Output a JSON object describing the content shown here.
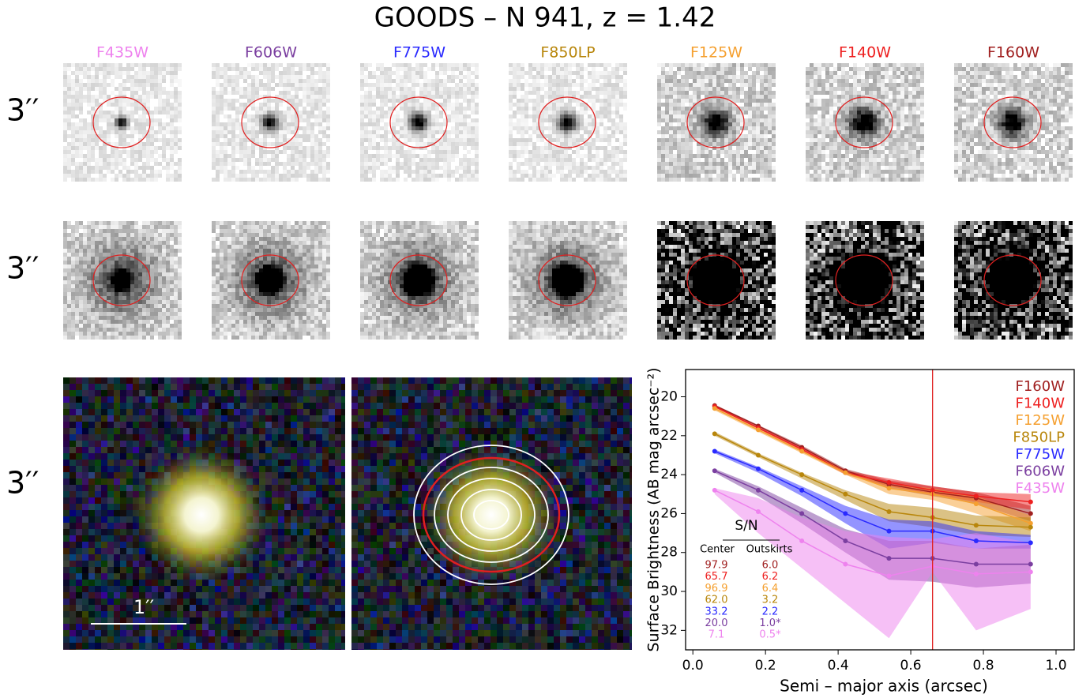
{
  "title": "GOODS – N 941, z = 1.42",
  "filters": [
    {
      "label": "F435W",
      "color": "#ee82ee"
    },
    {
      "label": "F606W",
      "color": "#7b3fa0"
    },
    {
      "label": "F775W",
      "color": "#2a2aff"
    },
    {
      "label": "F850LP",
      "color": "#b8860b"
    },
    {
      "label": "F125W",
      "color": "#f5a030"
    },
    {
      "label": "F140W",
      "color": "#ee2020"
    },
    {
      "label": "F160W",
      "color": "#a02020"
    }
  ],
  "row_labels": [
    "3′′",
    "3′′",
    "3′′"
  ],
  "scale_bar_label": "1′′",
  "chart_data": {
    "type": "line",
    "xlabel": "Semi – major axis (arcsec)",
    "ylabel": "Surface Brightness (AB mag arcsec⁻²)",
    "x": [
      0.06,
      0.18,
      0.3,
      0.42,
      0.54,
      0.66,
      0.78,
      0.93
    ],
    "xlim": [
      -0.02,
      1.05
    ],
    "ylim": [
      33,
      18.6
    ],
    "xticks": [
      {
        "value": 0,
        "label": "0.0"
      },
      0.2,
      0.4,
      0.6,
      0.8,
      {
        "value": 1,
        "label": "1.0"
      }
    ],
    "yticks": [
      20,
      22,
      24,
      26,
      28,
      30,
      32
    ],
    "vline_x": 0.66,
    "vline_color": "#e02020",
    "series": [
      {
        "name": "F160W",
        "color": "#a02020",
        "values": [
          20.45,
          21.5,
          22.6,
          23.8,
          24.5,
          24.9,
          25.2,
          26.0
        ],
        "lower": [
          20.4,
          21.45,
          22.5,
          23.7,
          24.3,
          24.6,
          24.9,
          25.6
        ],
        "upper": [
          20.5,
          21.6,
          22.7,
          23.9,
          24.7,
          25.1,
          25.5,
          26.4
        ]
      },
      {
        "name": "F140W",
        "color": "#ee2020",
        "values": [
          20.5,
          21.6,
          22.7,
          23.9,
          24.4,
          24.8,
          25.1,
          25.4
        ],
        "lower": [
          20.45,
          21.55,
          22.6,
          23.8,
          24.2,
          24.6,
          24.9,
          25.0
        ],
        "upper": [
          20.55,
          21.65,
          22.8,
          24.0,
          24.6,
          25.0,
          25.4,
          25.8
        ]
      },
      {
        "name": "F125W",
        "color": "#f5a030",
        "values": [
          20.6,
          21.7,
          22.8,
          23.9,
          24.7,
          25.0,
          25.5,
          26.5
        ],
        "lower": [
          20.5,
          21.6,
          22.7,
          23.8,
          24.5,
          24.7,
          25.1,
          26.1
        ],
        "upper": [
          20.7,
          21.8,
          22.9,
          24.0,
          25.0,
          25.3,
          26.0,
          26.9
        ]
      },
      {
        "name": "F850LP",
        "color": "#b8860b",
        "values": [
          21.9,
          23.0,
          24.0,
          25.0,
          25.9,
          26.2,
          26.6,
          26.7
        ],
        "lower": [
          21.8,
          22.9,
          23.9,
          24.8,
          25.5,
          25.7,
          26.1,
          26.2
        ],
        "upper": [
          22.0,
          23.1,
          24.2,
          25.3,
          26.4,
          26.7,
          27.1,
          27.2
        ]
      },
      {
        "name": "F775W",
        "color": "#2a2aff",
        "values": [
          22.8,
          23.7,
          24.8,
          26.0,
          26.9,
          26.9,
          27.4,
          27.5
        ],
        "lower": [
          22.7,
          23.6,
          24.6,
          25.6,
          26.3,
          26.4,
          26.9,
          27.1
        ],
        "upper": [
          22.9,
          23.9,
          25.1,
          26.5,
          27.8,
          27.5,
          27.8,
          27.8
        ]
      },
      {
        "name": "F606W",
        "color": "#7b3fa0",
        "values": [
          23.8,
          24.8,
          26.0,
          27.4,
          28.3,
          28.3,
          28.6,
          28.6
        ],
        "lower": [
          23.7,
          24.6,
          25.7,
          26.8,
          27.4,
          27.4,
          27.8,
          27.6
        ],
        "upper": [
          23.9,
          25.1,
          26.5,
          28.0,
          29.4,
          29.5,
          29.8,
          29.6
        ]
      },
      {
        "name": "F435W",
        "color": "#ee82ee",
        "values": [
          24.8,
          25.9,
          27.4,
          28.6,
          29.2,
          28.7,
          29.1,
          29.0
        ],
        "lower": [
          24.7,
          25.2,
          26.2,
          26.9,
          27.2,
          27.3,
          27.0,
          27.5
        ],
        "upper": [
          25.0,
          27.0,
          28.8,
          30.6,
          32.4,
          29.0,
          32.0,
          30.9
        ]
      }
    ],
    "sn_table": {
      "title": "S/N",
      "headers": [
        "Center",
        "Outskirts"
      ],
      "rows": [
        [
          "97.9",
          "6.0"
        ],
        [
          "65.7",
          "6.2"
        ],
        [
          "96.9",
          "6.4"
        ],
        [
          "62.0",
          "3.2"
        ],
        [
          "33.2",
          "2.2"
        ],
        [
          "20.0",
          "1.0*"
        ],
        [
          "7.1",
          "0.5*"
        ]
      ]
    }
  }
}
